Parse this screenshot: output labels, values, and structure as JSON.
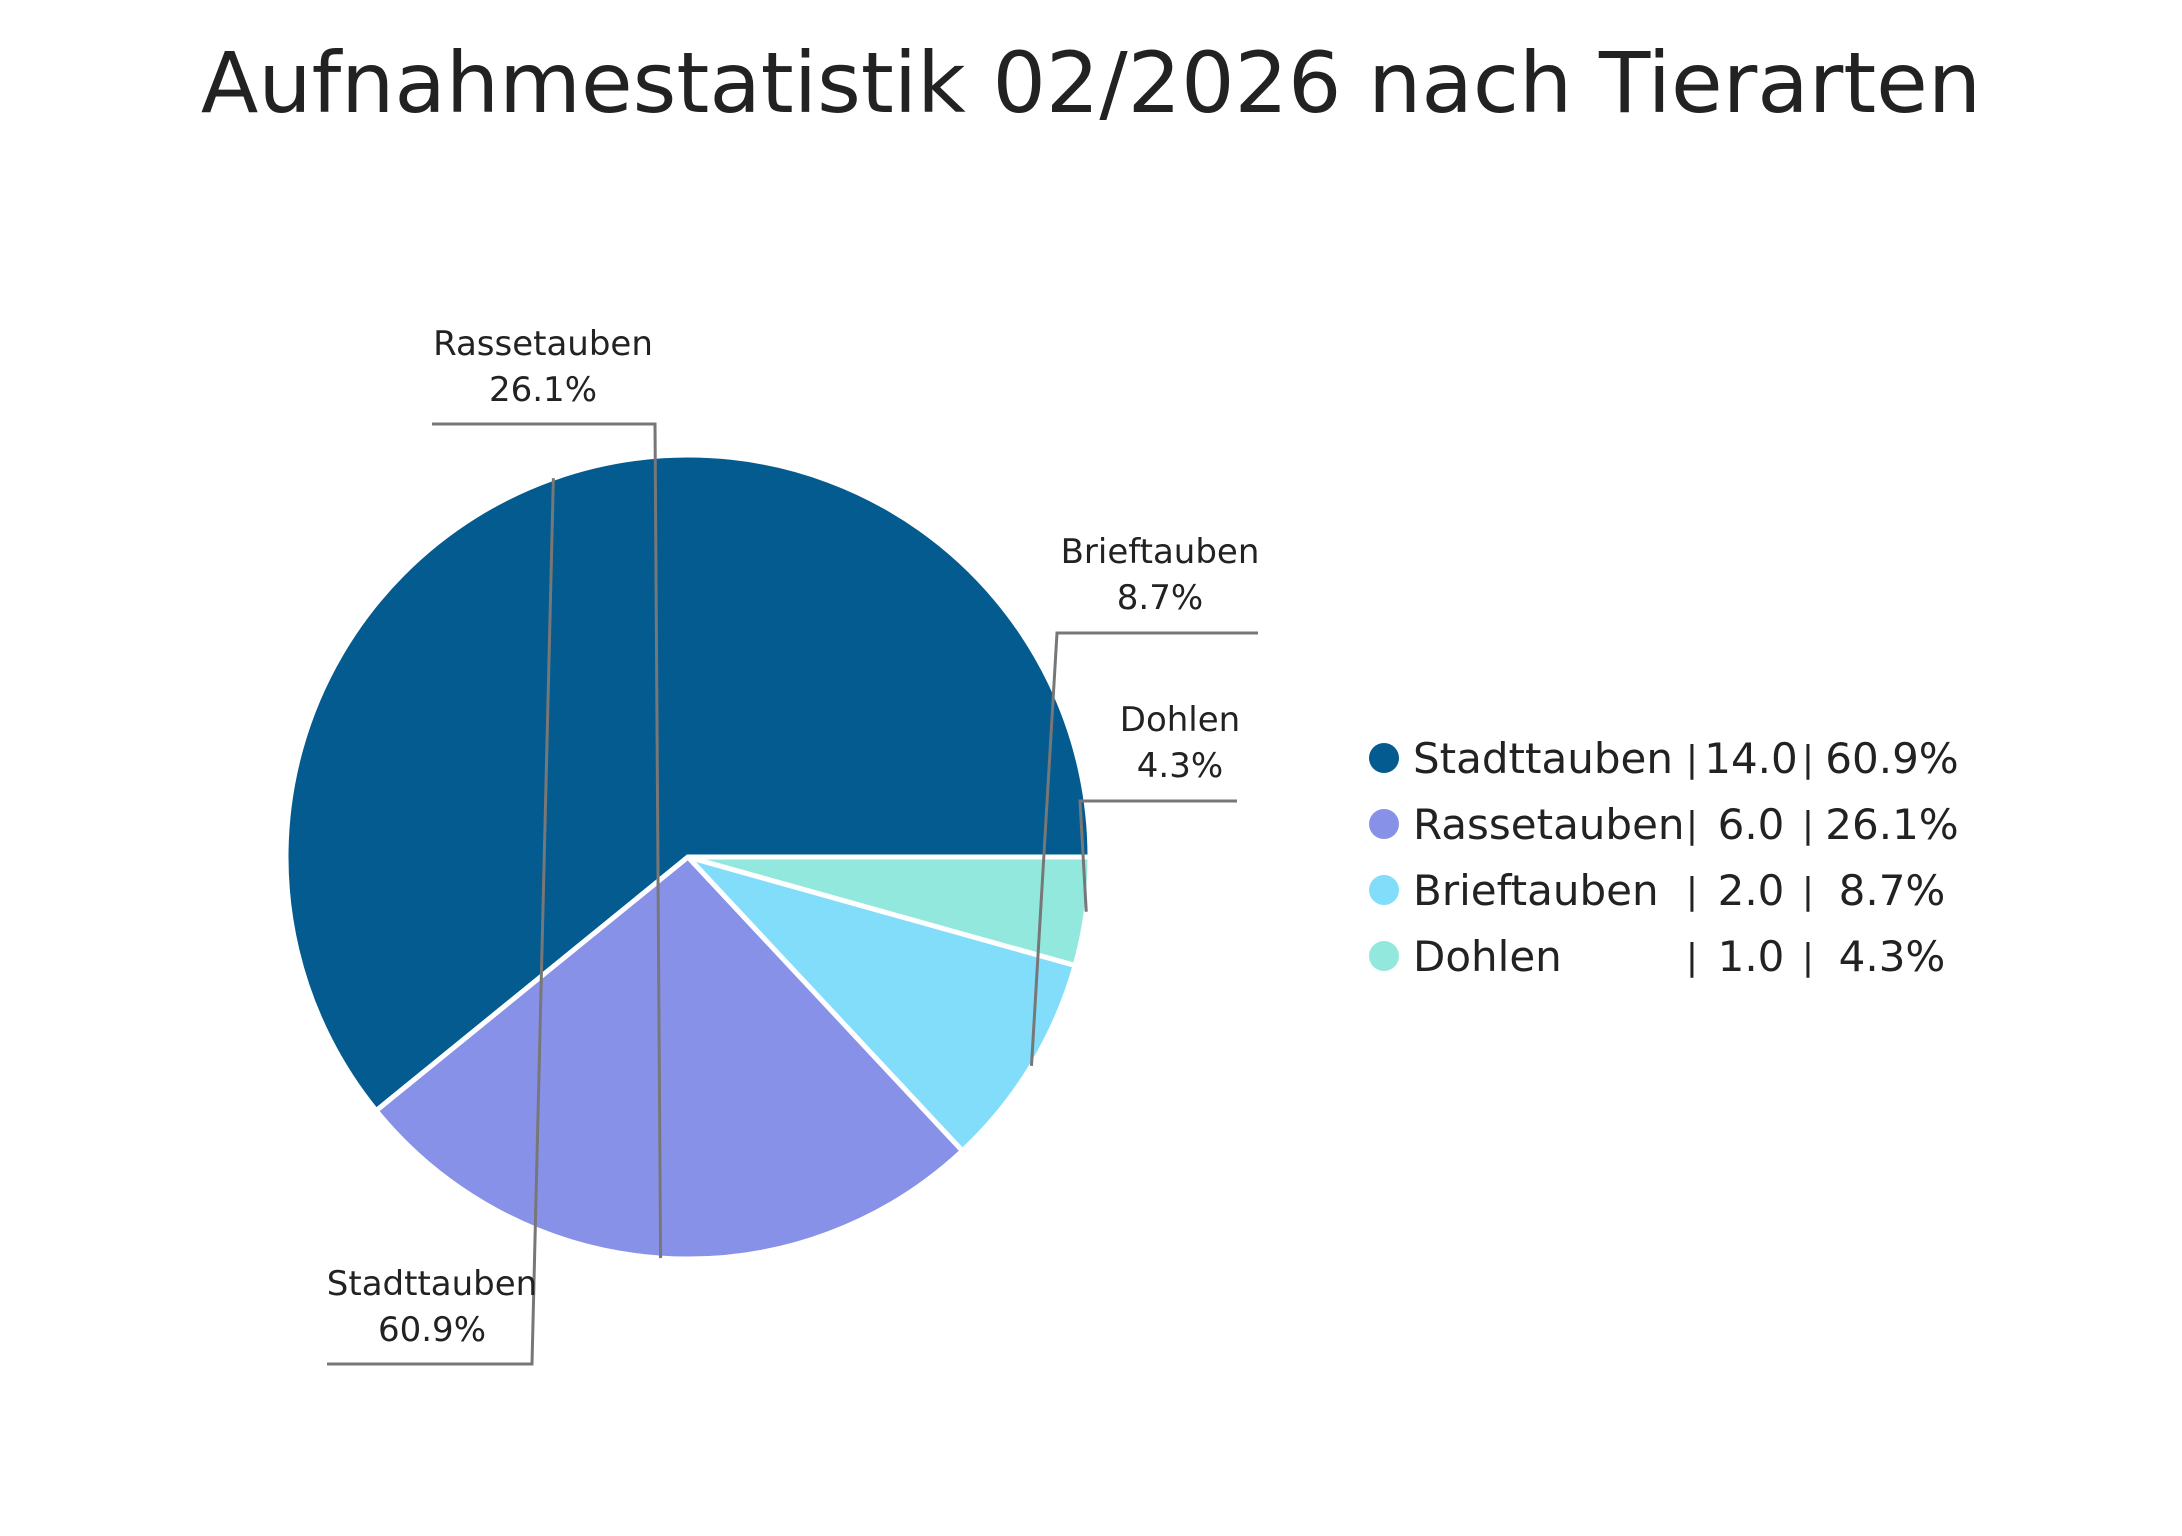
{
  "chart_data": {
    "type": "pie",
    "title": "Aufnahmestatistik 02/2026 nach Tierarten",
    "start_angle_deg": 0,
    "direction": "counterclockwise",
    "slices": [
      {
        "label": "Stadttauben",
        "value": 14.0,
        "value_text": "14.0",
        "percent_text": "60.9%",
        "color": "#045b8f"
      },
      {
        "label": "Rassetauben",
        "value": 6.0,
        "value_text": "6.0",
        "percent_text": "26.1%",
        "color": "#8891e8"
      },
      {
        "label": "Brieftauben",
        "value": 2.0,
        "value_text": "2.0",
        "percent_text": "8.7%",
        "color": "#82ddfb"
      },
      {
        "label": "Dohlen",
        "value": 1.0,
        "value_text": "1.0",
        "percent_text": "4.3%",
        "color": "#92e8dc"
      }
    ],
    "legend": {
      "position": "right",
      "separator": "|"
    }
  }
}
